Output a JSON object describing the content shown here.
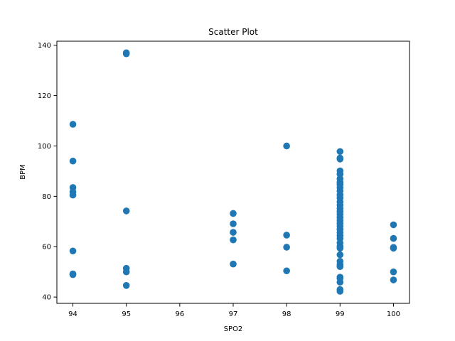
{
  "chart_data": {
    "type": "scatter",
    "title": "Scatter Plot",
    "xlabel": "SPO2",
    "ylabel": "BPM",
    "xlim": [
      93.7,
      100.3
    ],
    "ylim": [
      37.5,
      141.6
    ],
    "xticks": [
      94,
      95,
      96,
      97,
      98,
      99,
      100
    ],
    "yticks": [
      40,
      60,
      80,
      100,
      120,
      140
    ],
    "grid": false,
    "marker_color": "#1f77b4",
    "series": [
      {
        "points": [
          [
            94,
            108.6
          ],
          [
            94,
            94.0
          ],
          [
            94,
            83.5
          ],
          [
            94,
            81.8
          ],
          [
            94,
            80.5
          ],
          [
            94,
            58.3
          ],
          [
            94,
            49.2
          ],
          [
            94,
            48.9
          ],
          [
            95,
            137.0
          ],
          [
            95,
            136.6
          ],
          [
            95,
            74.2
          ],
          [
            95,
            51.4
          ],
          [
            95,
            50.0
          ],
          [
            95,
            44.6
          ],
          [
            97,
            73.2
          ],
          [
            97,
            69.1
          ],
          [
            97,
            65.7
          ],
          [
            97,
            62.7
          ],
          [
            97,
            53.1
          ],
          [
            98,
            100.0
          ],
          [
            98,
            64.6
          ],
          [
            98,
            59.8
          ],
          [
            98,
            50.4
          ],
          [
            99,
            97.8
          ],
          [
            99,
            95.2
          ],
          [
            99,
            94.8
          ],
          [
            99,
            90.1
          ],
          [
            99,
            88.8
          ],
          [
            99,
            87.0
          ],
          [
            99,
            85.6
          ],
          [
            99,
            84.7
          ],
          [
            99,
            83.4
          ],
          [
            99,
            82.1
          ],
          [
            99,
            80.6
          ],
          [
            99,
            79.3
          ],
          [
            99,
            77.8
          ],
          [
            99,
            76.5
          ],
          [
            99,
            75.2
          ],
          [
            99,
            74.0
          ],
          [
            99,
            72.9
          ],
          [
            99,
            71.6
          ],
          [
            99,
            70.4
          ],
          [
            99,
            69.2
          ],
          [
            99,
            68.1
          ],
          [
            99,
            66.9
          ],
          [
            99,
            65.7
          ],
          [
            99,
            64.4
          ],
          [
            99,
            63.2
          ],
          [
            99,
            61.5
          ],
          [
            99,
            60.2
          ],
          [
            99,
            59.4
          ],
          [
            99,
            56.8
          ],
          [
            99,
            54.2
          ],
          [
            99,
            52.9
          ],
          [
            99,
            52.1
          ],
          [
            99,
            47.9
          ],
          [
            99,
            47.4
          ],
          [
            99,
            45.9
          ],
          [
            99,
            43.0
          ],
          [
            99,
            42.3
          ],
          [
            100,
            68.7
          ],
          [
            100,
            63.3
          ],
          [
            100,
            59.7
          ],
          [
            100,
            59.4
          ],
          [
            100,
            50.0
          ],
          [
            100,
            46.8
          ]
        ]
      }
    ]
  }
}
